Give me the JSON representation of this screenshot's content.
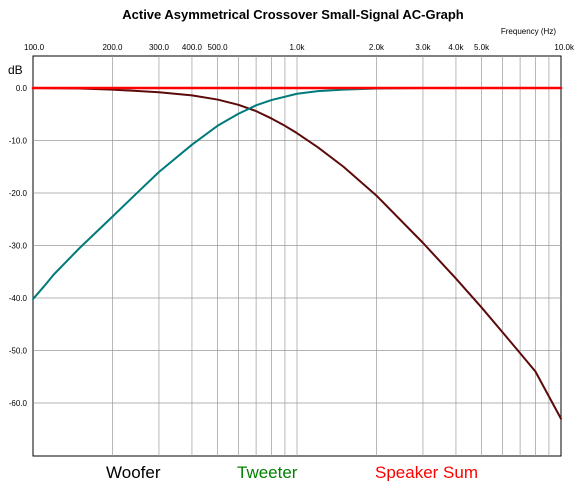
{
  "chart_data": {
    "type": "line",
    "title": "Active Asymmetrical Crossover Small-Signal AC-Graph",
    "xlabel": "Frequency   (Hz)",
    "ylabel": "dB",
    "x_scale": "log",
    "xlim": [
      100,
      10000
    ],
    "ylim": [
      -70,
      0.5
    ],
    "grid": true,
    "x_ticks": [
      {
        "value": 100,
        "label": "100.0"
      },
      {
        "value": 200,
        "label": "200.0"
      },
      {
        "value": 300,
        "label": "300.0"
      },
      {
        "value": 400,
        "label": "400.0"
      },
      {
        "value": 500,
        "label": "500.0"
      },
      {
        "value": 1000,
        "label": "1.0k"
      },
      {
        "value": 2000,
        "label": "2.0k"
      },
      {
        "value": 3000,
        "label": "3.0k"
      },
      {
        "value": 4000,
        "label": "4.0k"
      },
      {
        "value": 5000,
        "label": "5.0k"
      },
      {
        "value": 10000,
        "label": "10.0k"
      }
    ],
    "y_ticks": [
      {
        "value": 0,
        "label": "0.0"
      },
      {
        "value": -10,
        "label": "-10.0"
      },
      {
        "value": -20,
        "label": "-20.0"
      },
      {
        "value": -30,
        "label": "-30.0"
      },
      {
        "value": -40,
        "label": "-40.0"
      },
      {
        "value": -50,
        "label": "-50.0"
      },
      {
        "value": -60,
        "label": "-60.0"
      }
    ],
    "series": [
      {
        "name": "Woofer",
        "color": "#5c0a0a",
        "x": [
          100,
          150,
          200,
          300,
          400,
          500,
          600,
          700,
          800,
          900,
          1000,
          1200,
          1500,
          2000,
          3000,
          4000,
          5000,
          6000,
          7000,
          8000,
          10000
        ],
        "y": [
          0,
          -0.1,
          -0.3,
          -0.8,
          -1.4,
          -2.2,
          -3.2,
          -4.4,
          -5.8,
          -7.2,
          -8.6,
          -11.3,
          -15.0,
          -20.5,
          -29.5,
          -36.3,
          -41.8,
          -46.5,
          -50.5,
          -54.0,
          -63.0
        ]
      },
      {
        "name": "Tweeter",
        "color": "#007a7a",
        "x": [
          100,
          110,
          120,
          150,
          200,
          250,
          300,
          400,
          500,
          600,
          700,
          800,
          1000,
          1200,
          1500,
          2000,
          3000
        ],
        "y": [
          -40.2,
          -37.8,
          -35.5,
          -30.5,
          -24.5,
          -19.8,
          -16.0,
          -10.8,
          -7.2,
          -4.9,
          -3.3,
          -2.3,
          -1.1,
          -0.6,
          -0.3,
          -0.1,
          0
        ]
      },
      {
        "name": "Speaker Sum",
        "color": "#ff0000",
        "x": [
          100,
          10000
        ],
        "y": [
          0,
          0
        ]
      }
    ],
    "legend_position": "bottom",
    "legend_colors": [
      "#000000",
      "#008000",
      "#ff0000"
    ]
  }
}
